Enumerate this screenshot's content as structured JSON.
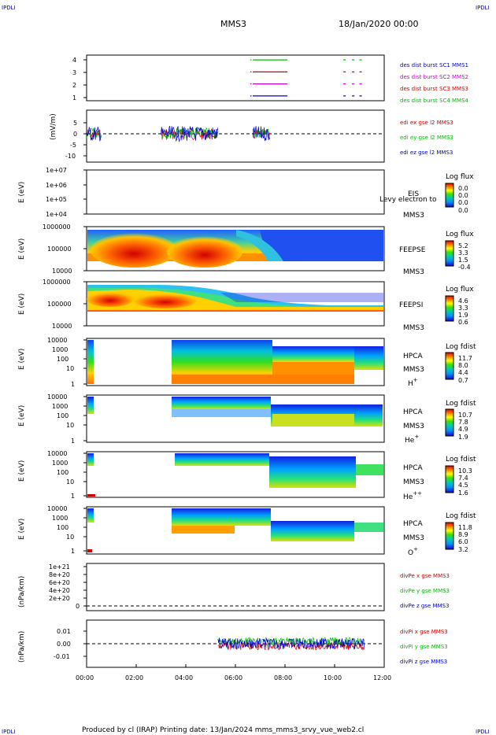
{
  "header": {
    "corner_tl": "IPDLI",
    "corner_tr": "IPDLI",
    "corner_bl": "IPDLI",
    "corner_br": "IPDLI",
    "title": "MMS3",
    "date": "18/Jan/2020 00:00"
  },
  "footer": {
    "text": "Produced by cl (IRAP)   Printing date: 13/Jan/2024   mms_mms3_srvy_vue_web2.cl"
  },
  "time_axis": {
    "ticks": [
      "00:00",
      "02:00",
      "04:00",
      "06:00",
      "08:00",
      "10:00",
      "12:00"
    ],
    "range_hours": [
      0,
      12
    ]
  },
  "chart_data": [
    {
      "type": "line",
      "panel": "burst",
      "yticks": [
        "4",
        "3",
        "2",
        "1"
      ],
      "ylim": [
        0.6,
        4.4
      ],
      "series": [
        {
          "name": "des dist burst SC1 MMS1",
          "color": "#0000cc",
          "y": 1,
          "intervals": [
            [
              6.6,
              6.65
            ],
            [
              6.7,
              8.1
            ],
            [
              10.35,
              10.45
            ],
            [
              10.7,
              10.8
            ],
            [
              11.0,
              11.1
            ]
          ]
        },
        {
          "name": "des dist burst SC2 MMS2",
          "color": "#cc00cc",
          "y": 2,
          "intervals": [
            [
              6.6,
              6.65
            ],
            [
              6.7,
              8.1
            ],
            [
              10.35,
              10.45
            ],
            [
              10.7,
              10.8
            ],
            [
              11.0,
              11.1
            ]
          ]
        },
        {
          "name": "des dist burst SC3 MMS3",
          "color": "#cc0000",
          "y": 3,
          "intervals": [
            [
              6.6,
              6.65
            ],
            [
              6.7,
              8.1
            ],
            [
              10.35,
              10.45
            ],
            [
              10.7,
              10.8
            ],
            [
              11.0,
              11.1
            ]
          ]
        },
        {
          "name": "des dist burst SC4 MMS4",
          "color": "#00bb00",
          "y": 4,
          "intervals": [
            [
              6.6,
              6.65
            ],
            [
              6.7,
              8.1
            ],
            [
              10.35,
              10.45
            ],
            [
              10.7,
              10.8
            ],
            [
              11.0,
              11.1
            ]
          ]
        }
      ]
    },
    {
      "type": "line",
      "panel": "edi",
      "ylabel": "(mV/m)",
      "yticks": [
        "5",
        "0",
        "-5",
        "-10"
      ],
      "ylim": [
        -11,
        8
      ],
      "series": [
        {
          "name": "edi ex gse l2 MMS3",
          "color": "#cc0000"
        },
        {
          "name": "edi ey gse l2 MMS3",
          "color": "#00bb00"
        },
        {
          "name": "edi ez gse l2 MMS3",
          "color": "#0000cc"
        }
      ],
      "active_intervals": [
        [
          0.0,
          0.6
        ],
        [
          3.0,
          5.3
        ],
        [
          6.7,
          7.4
        ]
      ]
    },
    {
      "type": "heatmap",
      "panel": "EIS",
      "ylabel": "E (eV)",
      "yticks": [
        "1e+07",
        "1e+06",
        "1e+05",
        "1e+04"
      ],
      "labels": [
        "EIS",
        "MMS3"
      ],
      "overlay_text": "Levy electron to",
      "colorbar": {
        "title": "Log flux",
        "ticks": [
          "0.0",
          "0.0",
          "0.0",
          "0.0"
        ]
      }
    },
    {
      "type": "heatmap",
      "panel": "FEEPSE",
      "ylabel": "E (eV)",
      "yticks": [
        "1000000",
        "100000",
        "10000"
      ],
      "labels": [
        "FEEPSE",
        "MMS3"
      ],
      "colorbar": {
        "title": "Log flux",
        "ticks": [
          "5.2",
          "3.3",
          "1.5",
          "-0.4"
        ]
      }
    },
    {
      "type": "heatmap",
      "panel": "FEEPSI",
      "ylabel": "E (eV)",
      "yticks": [
        "1000000",
        "100000",
        "10000"
      ],
      "labels": [
        "FEEPSI",
        "MMS3"
      ],
      "colorbar": {
        "title": "Log flux",
        "ticks": [
          "4.6",
          "3.3",
          "1.9",
          "0.6"
        ]
      }
    },
    {
      "type": "heatmap",
      "panel": "HPCA H+",
      "ylabel": "E (eV)",
      "yticks": [
        "10000",
        "1000",
        "100",
        "10",
        "1"
      ],
      "labels": [
        "HPCA",
        "MMS3",
        "H",
        "+"
      ],
      "colorbar": {
        "title": "Log fdist",
        "ticks": [
          "11.7",
          "8.0",
          "4.4",
          "0.7"
        ]
      }
    },
    {
      "type": "heatmap",
      "panel": "HPCA He+",
      "ylabel": "E (eV)",
      "yticks": [
        "10000",
        "1000",
        "100",
        "10",
        "1"
      ],
      "labels": [
        "HPCA",
        "MMS3",
        "He",
        "+"
      ],
      "colorbar": {
        "title": "Log fdist",
        "ticks": [
          "10.7",
          "7.8",
          "4.9",
          "1.9"
        ]
      }
    },
    {
      "type": "heatmap",
      "panel": "HPCA He++",
      "ylabel": "E (eV)",
      "yticks": [
        "10000",
        "1000",
        "100",
        "10",
        "1"
      ],
      "labels": [
        "HPCA",
        "MMS3",
        "He",
        "++"
      ],
      "colorbar": {
        "title": "Log fdist",
        "ticks": [
          "10.3",
          "7.4",
          "4.5",
          "1.6"
        ]
      }
    },
    {
      "type": "heatmap",
      "panel": "HPCA O+",
      "ylabel": "E (eV)",
      "yticks": [
        "10000",
        "1000",
        "100",
        "10",
        "1"
      ],
      "labels": [
        "HPCA",
        "MMS3",
        "O",
        "+"
      ],
      "colorbar": {
        "title": "Log fdist",
        "ticks": [
          "11.8",
          "8.9",
          "6.0",
          "3.2"
        ]
      }
    },
    {
      "type": "line",
      "panel": "divPe",
      "ylabel": "(nPa/km)",
      "yticks": [
        "1e+21",
        "8e+20",
        "6e+20",
        "4e+20",
        "2e+20",
        "0"
      ],
      "series": [
        {
          "name": "divPe x gse MMS3",
          "color": "#cc0000"
        },
        {
          "name": "divPe y gse MMS3",
          "color": "#00bb00"
        },
        {
          "name": "divPe z gse MMS3",
          "color": "#0000cc"
        }
      ]
    },
    {
      "type": "line",
      "panel": "divPi",
      "ylabel": "(nPa/km)",
      "yticks": [
        "0.01",
        "0.00",
        "-0.01"
      ],
      "ylim": [
        -0.017,
        0.017
      ],
      "series": [
        {
          "name": "divPi x gse MMS3",
          "color": "#cc0000"
        },
        {
          "name": "divPi y gse MMS3",
          "color": "#00bb00"
        },
        {
          "name": "divPi z gse MMS3",
          "color": "#0000cc"
        }
      ],
      "active_intervals": [
        [
          5.3,
          11.2
        ]
      ]
    }
  ]
}
